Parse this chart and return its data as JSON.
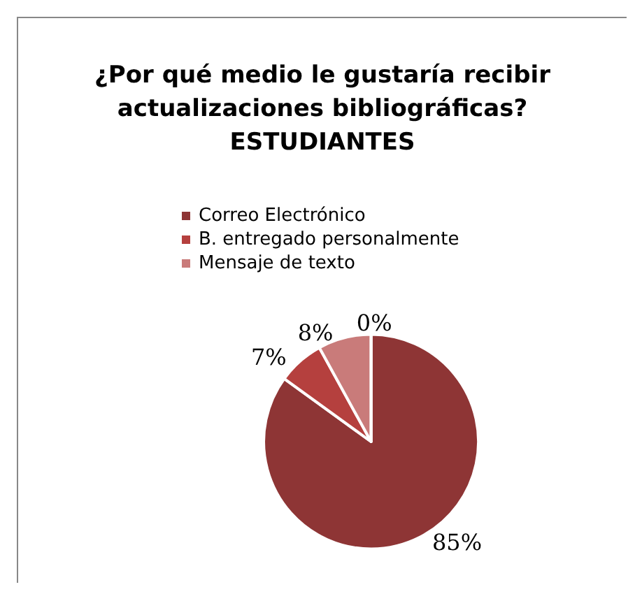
{
  "chart_data": {
    "type": "pie",
    "title": "¿Por qué medio le gustaría recibir actualizaciones bibliográficas? ESTUDIANTES",
    "categories": [
      "Correo Electrónico",
      "B. entregado personalmente",
      "Mensaje de texto",
      null
    ],
    "values": [
      85,
      7,
      8,
      0
    ],
    "colors": [
      "#8e3535",
      "#b5403e",
      "#c97b7a",
      "#f4eded"
    ],
    "value_labels": [
      "85%",
      "7%",
      "8%",
      "0%"
    ],
    "legend": "top"
  }
}
